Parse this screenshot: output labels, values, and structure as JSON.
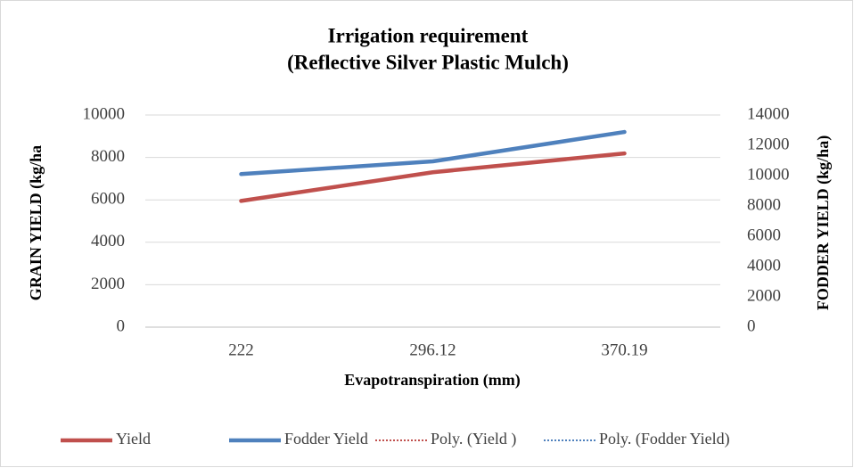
{
  "chart_data": {
    "type": "line",
    "title": [
      "Irrigation requirement",
      "(Reflective Silver Plastic Mulch)"
    ],
    "x_label": "Evapotranspiration (mm)",
    "y_label": "GRAIN YIELD (kg/ha",
    "y2_label": "FODDER YIELD (kg/ha)",
    "categories": [
      "222",
      "296.12",
      "370.19"
    ],
    "ylim": [
      0,
      10000
    ],
    "yticks": [
      0,
      2000,
      4000,
      6000,
      8000,
      10000
    ],
    "y2lim": [
      0,
      14000
    ],
    "y2ticks": [
      0,
      2000,
      4000,
      6000,
      8000,
      10000,
      12000,
      14000
    ],
    "grid": true,
    "legend": "bottom",
    "series": [
      {
        "name": "Yield",
        "color": "#c0504d",
        "values": [
          5950,
          7300,
          8190
        ]
      },
      {
        "name": "Fodder Yield",
        "color": "#4f81bd",
        "axis": "y2",
        "values": [
          10100,
          10940,
          12880
        ]
      },
      {
        "name": "Poly. (Yield )",
        "color": "#c0504d",
        "dashed": true,
        "values": [
          5950,
          7300,
          8190
        ]
      },
      {
        "name": "Poly. (Fodder Yield)",
        "color": "#4f81bd",
        "axis": "y2",
        "dashed": true,
        "values": [
          10100,
          10940,
          12880
        ]
      }
    ]
  }
}
